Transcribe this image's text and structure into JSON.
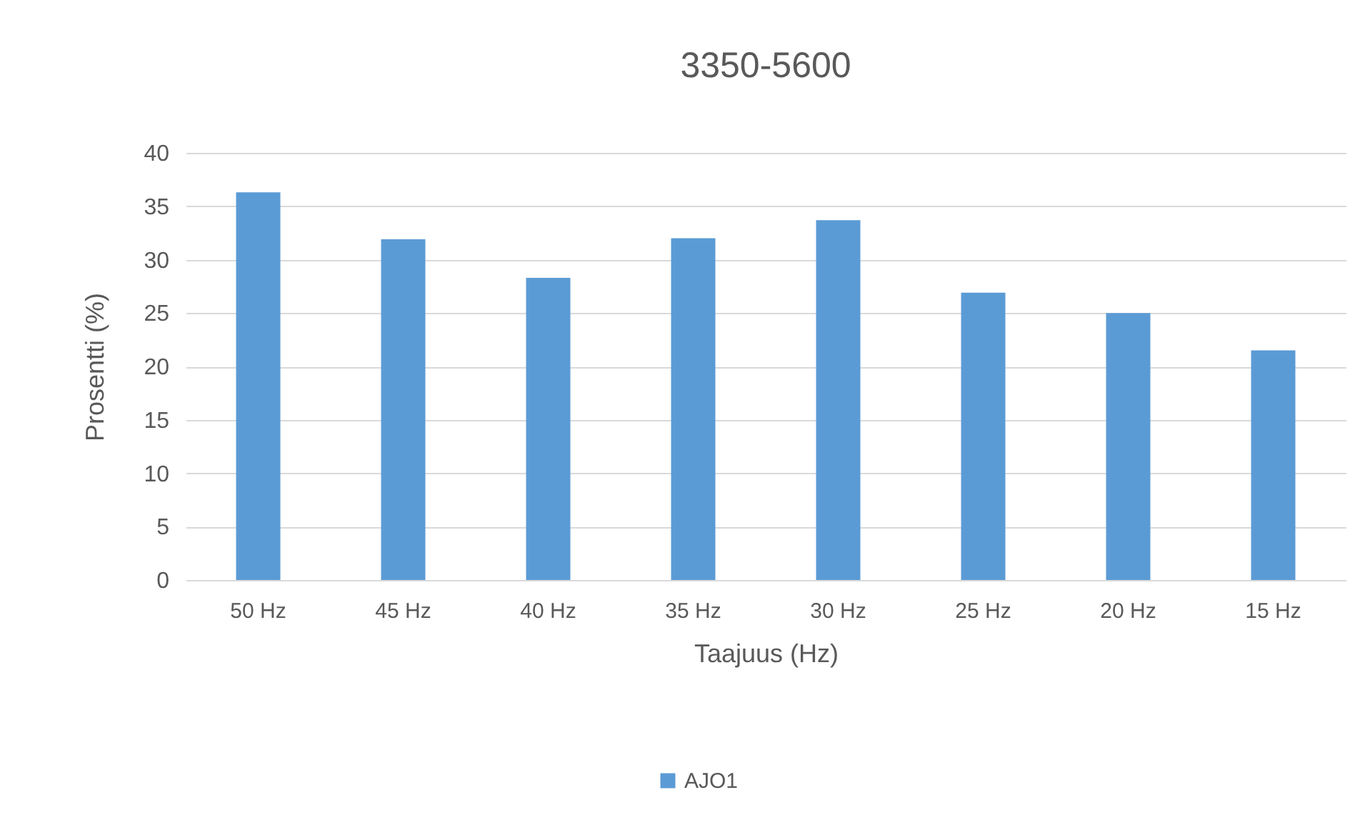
{
  "chart_data": {
    "type": "bar",
    "title": "3350-5600",
    "xlabel": "Taajuus (Hz)",
    "ylabel": "Prosentti (%)",
    "categories": [
      "50 Hz",
      "45 Hz",
      "40 Hz",
      "35 Hz",
      "30 Hz",
      "25 Hz",
      "20 Hz",
      "15 Hz"
    ],
    "series": [
      {
        "name": "AJO1",
        "color": "#5b9bd5",
        "values": [
          36.3,
          31.9,
          28.3,
          32.0,
          33.7,
          26.9,
          25.0,
          21.5
        ]
      }
    ],
    "ylim": [
      0,
      40
    ],
    "yticks": [
      0,
      5,
      10,
      15,
      20,
      25,
      30,
      35,
      40
    ],
    "grid": "y",
    "legend": "bottom"
  }
}
